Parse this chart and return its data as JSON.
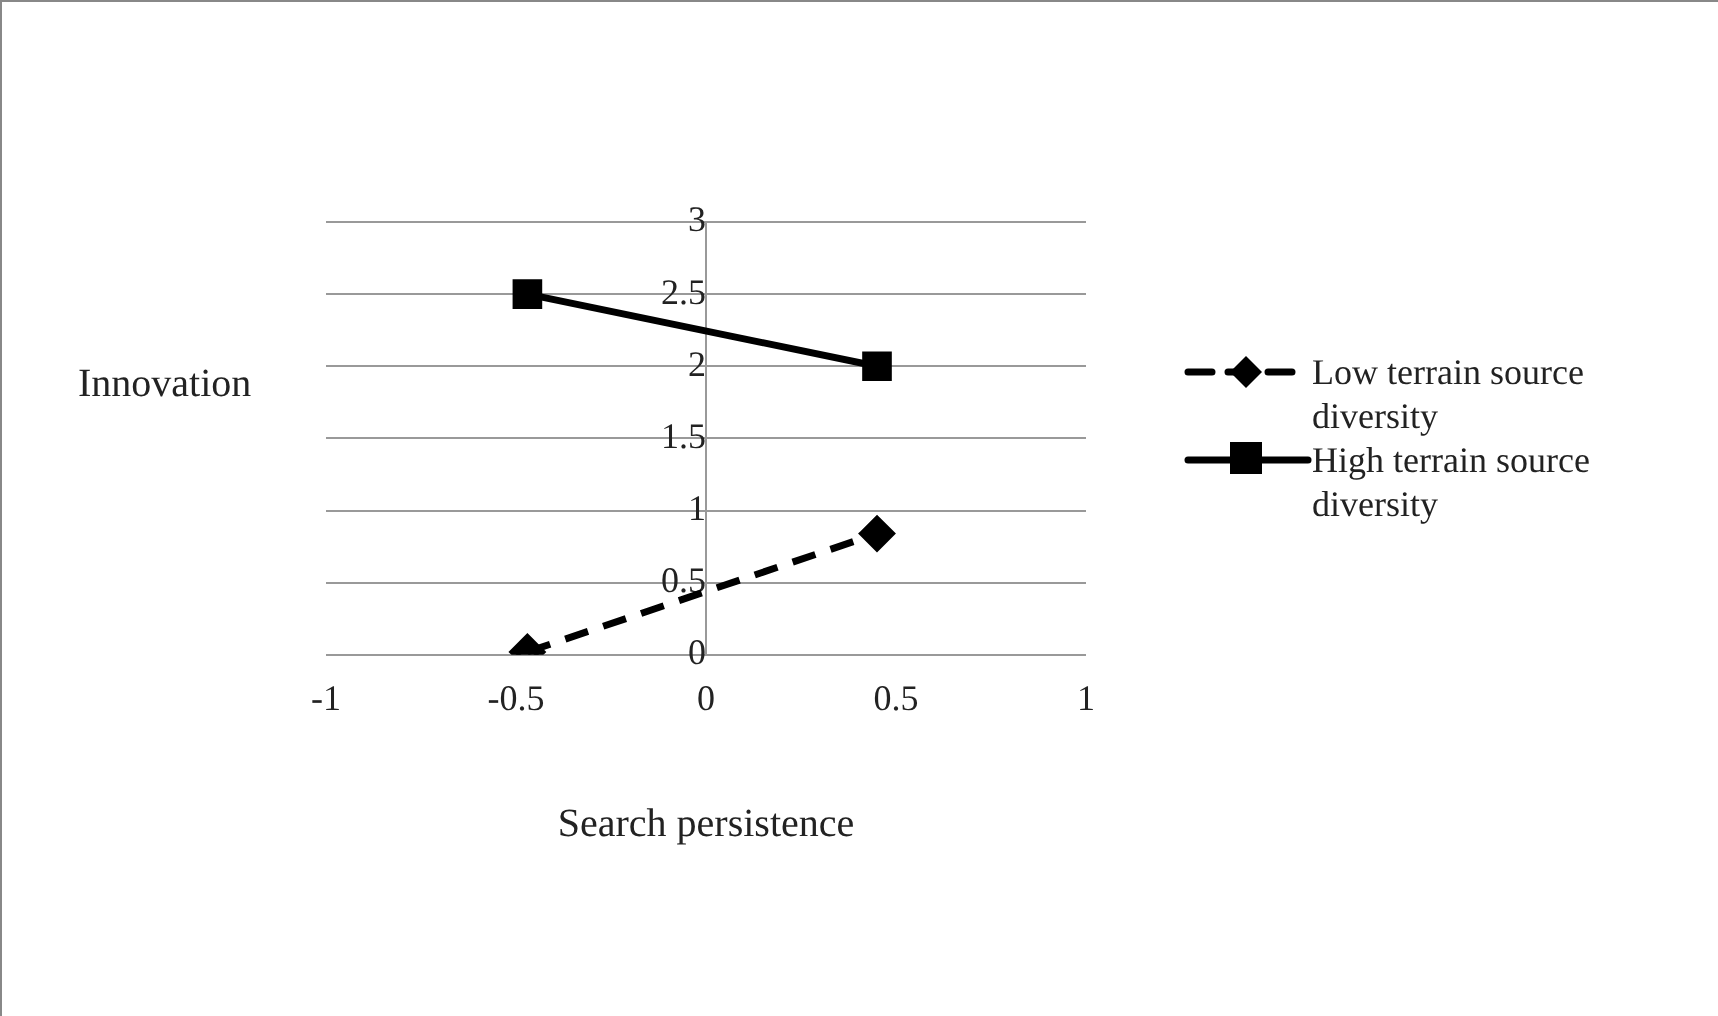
{
  "chart_data": {
    "type": "line",
    "xlabel": "Search persistence",
    "ylabel": "Innovation",
    "x": [
      -0.47,
      0.45
    ],
    "xlim": [
      -1,
      1
    ],
    "xticks": [
      -1,
      -0.5,
      0,
      0.5,
      1
    ],
    "ylim": [
      0,
      3
    ],
    "yticks": [
      0,
      0.5,
      1,
      1.5,
      2,
      2.5,
      3
    ],
    "grid": "y",
    "legend": "right",
    "series": [
      {
        "name": "Low terrain source diversity",
        "color": "#000000",
        "values": [
          0.02,
          0.84
        ],
        "marker": "diamond",
        "line_style": "dashed"
      },
      {
        "name": "High terrain source diversity",
        "color": "#000000",
        "values": [
          2.5,
          2.0
        ],
        "marker": "square",
        "line_style": "solid"
      }
    ]
  }
}
